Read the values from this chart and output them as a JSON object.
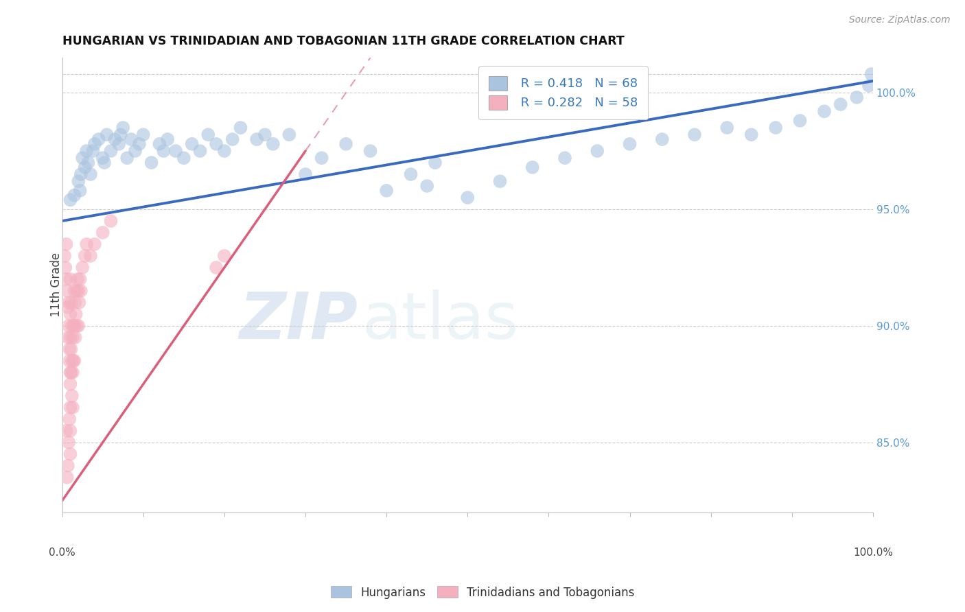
{
  "title": "HUNGARIAN VS TRINIDADIAN AND TOBAGONIAN 11TH GRADE CORRELATION CHART",
  "source": "Source: ZipAtlas.com",
  "ylabel": "11th Grade",
  "right_yticks": [
    85.0,
    90.0,
    95.0,
    100.0
  ],
  "xmin": 0.0,
  "xmax": 100.0,
  "ymin": 82.0,
  "ymax": 101.5,
  "blue_R": 0.418,
  "blue_N": 68,
  "pink_R": 0.282,
  "pink_N": 58,
  "blue_color": "#aac4e0",
  "pink_color": "#f4b0bf",
  "blue_line_color": "#3a6abf",
  "pink_line_color": "#d95f7a",
  "watermark_zip": "ZIP",
  "watermark_atlas": "atlas",
  "blue_scatter": [
    [
      1.0,
      95.4
    ],
    [
      1.5,
      95.6
    ],
    [
      2.0,
      96.2
    ],
    [
      2.2,
      95.8
    ],
    [
      2.5,
      97.2
    ],
    [
      2.8,
      96.8
    ],
    [
      3.0,
      97.5
    ],
    [
      3.2,
      97.0
    ],
    [
      3.5,
      96.5
    ],
    [
      4.0,
      97.8
    ],
    [
      4.5,
      98.0
    ],
    [
      5.0,
      97.2
    ],
    [
      5.5,
      98.2
    ],
    [
      6.0,
      97.5
    ],
    [
      6.5,
      98.0
    ],
    [
      7.0,
      97.8
    ],
    [
      7.5,
      98.5
    ],
    [
      8.0,
      97.2
    ],
    [
      8.5,
      98.0
    ],
    [
      9.0,
      97.5
    ],
    [
      10.0,
      98.2
    ],
    [
      11.0,
      97.0
    ],
    [
      12.0,
      97.8
    ],
    [
      13.0,
      98.0
    ],
    [
      14.0,
      97.5
    ],
    [
      15.0,
      97.2
    ],
    [
      16.0,
      97.8
    ],
    [
      17.0,
      97.5
    ],
    [
      18.0,
      98.2
    ],
    [
      19.0,
      97.8
    ],
    [
      20.0,
      97.5
    ],
    [
      21.0,
      98.0
    ],
    [
      22.0,
      98.5
    ],
    [
      24.0,
      98.0
    ],
    [
      26.0,
      97.8
    ],
    [
      28.0,
      98.2
    ],
    [
      30.0,
      96.5
    ],
    [
      32.0,
      97.2
    ],
    [
      35.0,
      97.8
    ],
    [
      38.0,
      97.5
    ],
    [
      40.0,
      95.8
    ],
    [
      43.0,
      96.5
    ],
    [
      46.0,
      97.0
    ],
    [
      50.0,
      95.5
    ],
    [
      54.0,
      96.2
    ],
    [
      58.0,
      96.8
    ],
    [
      62.0,
      97.2
    ],
    [
      66.0,
      97.5
    ],
    [
      70.0,
      97.8
    ],
    [
      74.0,
      98.0
    ],
    [
      78.0,
      98.2
    ],
    [
      82.0,
      98.5
    ],
    [
      85.0,
      98.2
    ],
    [
      88.0,
      98.5
    ],
    [
      91.0,
      98.8
    ],
    [
      94.0,
      99.2
    ],
    [
      96.0,
      99.5
    ],
    [
      98.0,
      99.8
    ],
    [
      99.5,
      100.3
    ],
    [
      99.8,
      100.8
    ],
    [
      2.3,
      96.5
    ],
    [
      3.8,
      97.5
    ],
    [
      5.2,
      97.0
    ],
    [
      7.2,
      98.2
    ],
    [
      9.5,
      97.8
    ],
    [
      12.5,
      97.5
    ],
    [
      25.0,
      98.2
    ],
    [
      45.0,
      96.0
    ]
  ],
  "pink_scatter": [
    [
      0.3,
      93.0
    ],
    [
      0.4,
      92.5
    ],
    [
      0.5,
      93.5
    ],
    [
      0.5,
      92.0
    ],
    [
      0.6,
      91.5
    ],
    [
      0.7,
      90.8
    ],
    [
      0.7,
      89.5
    ],
    [
      0.8,
      91.0
    ],
    [
      0.8,
      90.0
    ],
    [
      0.9,
      89.0
    ],
    [
      0.9,
      88.5
    ],
    [
      1.0,
      92.0
    ],
    [
      1.0,
      90.5
    ],
    [
      1.0,
      89.5
    ],
    [
      1.0,
      88.0
    ],
    [
      1.0,
      87.5
    ],
    [
      1.0,
      86.5
    ],
    [
      1.0,
      85.5
    ],
    [
      1.0,
      84.5
    ],
    [
      1.1,
      91.0
    ],
    [
      1.1,
      89.0
    ],
    [
      1.1,
      88.0
    ],
    [
      1.2,
      90.0
    ],
    [
      1.2,
      88.5
    ],
    [
      1.2,
      87.0
    ],
    [
      1.3,
      89.5
    ],
    [
      1.3,
      88.0
    ],
    [
      1.3,
      86.5
    ],
    [
      1.4,
      90.0
    ],
    [
      1.4,
      88.5
    ],
    [
      1.5,
      91.5
    ],
    [
      1.5,
      90.0
    ],
    [
      1.5,
      88.5
    ],
    [
      1.6,
      91.0
    ],
    [
      1.6,
      89.5
    ],
    [
      1.7,
      90.5
    ],
    [
      1.8,
      91.5
    ],
    [
      1.8,
      90.0
    ],
    [
      1.9,
      92.0
    ],
    [
      2.0,
      91.5
    ],
    [
      2.0,
      90.0
    ],
    [
      2.1,
      91.0
    ],
    [
      2.2,
      92.0
    ],
    [
      2.3,
      91.5
    ],
    [
      2.5,
      92.5
    ],
    [
      2.8,
      93.0
    ],
    [
      3.0,
      93.5
    ],
    [
      3.5,
      93.0
    ],
    [
      4.0,
      93.5
    ],
    [
      5.0,
      94.0
    ],
    [
      6.0,
      94.5
    ],
    [
      0.6,
      83.5
    ],
    [
      0.7,
      84.0
    ],
    [
      0.8,
      85.0
    ],
    [
      19.0,
      92.5
    ],
    [
      20.0,
      93.0
    ],
    [
      0.5,
      85.5
    ],
    [
      0.9,
      86.0
    ]
  ],
  "blue_trend_x0": 0.0,
  "blue_trend_y0": 94.5,
  "blue_trend_x1": 100.0,
  "blue_trend_y1": 100.5,
  "pink_trend_x0": 0.0,
  "pink_trend_y0": 82.5,
  "pink_trend_x1": 30.0,
  "pink_trend_y1": 97.5
}
